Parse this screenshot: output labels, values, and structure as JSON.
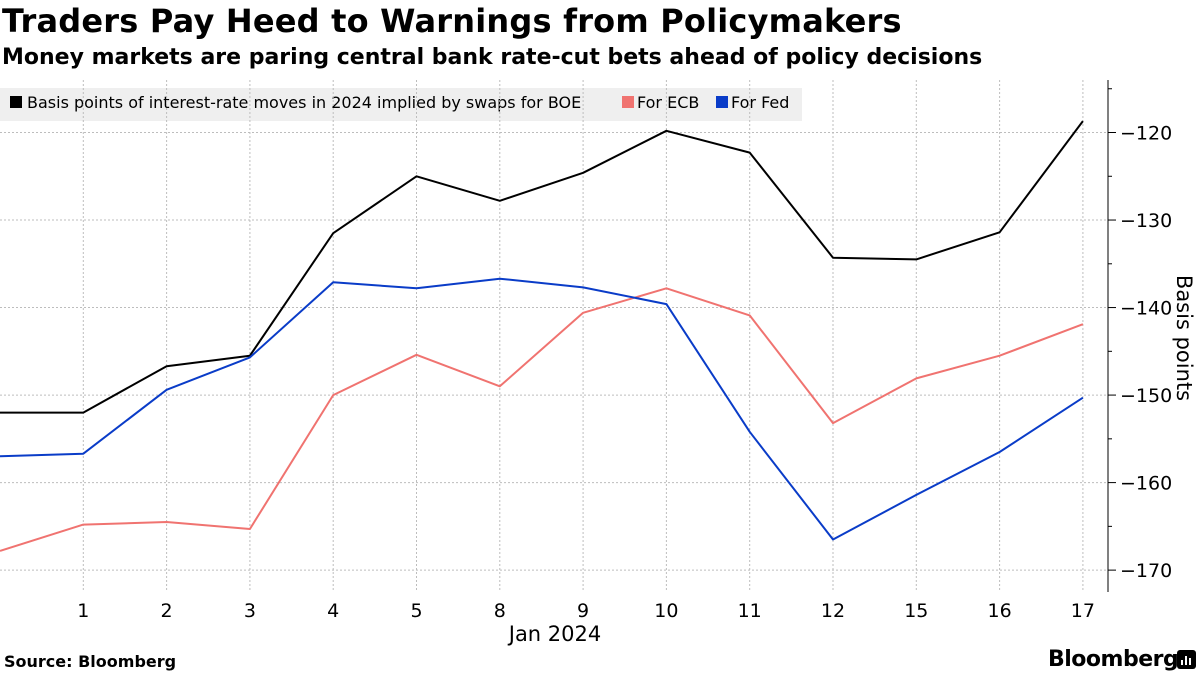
{
  "header": {
    "title": "Traders Pay Heed to Warnings from Policymakers",
    "subtitle": "Money markets are paring central bank rate-cut bets ahead of policy decisions"
  },
  "footer": {
    "source": "Source: Bloomberg",
    "brand": "Bloomberg"
  },
  "chart_data": {
    "type": "line",
    "title": "Traders Pay Heed to Warnings from Policymakers",
    "subtitle": "Money markets are paring central bank rate-cut bets ahead of policy decisions",
    "xlabel": "Jan 2024",
    "ylabel": "Basis points",
    "categories": [
      "",
      "1",
      "2",
      "3",
      "4",
      "5",
      "8",
      "9",
      "10",
      "11",
      "12",
      "15",
      "16",
      "17"
    ],
    "ylim": [
      -172.5,
      -114
    ],
    "yticks": [
      -120,
      -130,
      -140,
      -150,
      -160,
      -170
    ],
    "grid": true,
    "legend_position": "top-left",
    "series": [
      {
        "name": "Basis points of interest-rate moves in 2024 implied by swaps for BOE",
        "color": "#000000",
        "values": [
          -152,
          -152,
          -146.7,
          -145.5,
          -131.5,
          -125,
          -127.8,
          -124.6,
          -119.8,
          -122.3,
          -134.3,
          -134.5,
          -131.4,
          -118.7
        ]
      },
      {
        "name": "For ECB",
        "color": "#f07370",
        "values": [
          -167.8,
          -164.8,
          -164.5,
          -165.3,
          -150,
          -145.4,
          -149,
          -140.6,
          -137.8,
          -140.9,
          -153.2,
          -148.1,
          -145.5,
          -141.9
        ]
      },
      {
        "name": "For Fed",
        "color": "#0a3cc8",
        "values": [
          -157,
          -156.7,
          -149.4,
          -145.7,
          -137.1,
          -137.8,
          -136.7,
          -137.7,
          -139.6,
          -154.2,
          -166.5,
          -161.4,
          -156.5,
          -150.3
        ]
      }
    ]
  }
}
